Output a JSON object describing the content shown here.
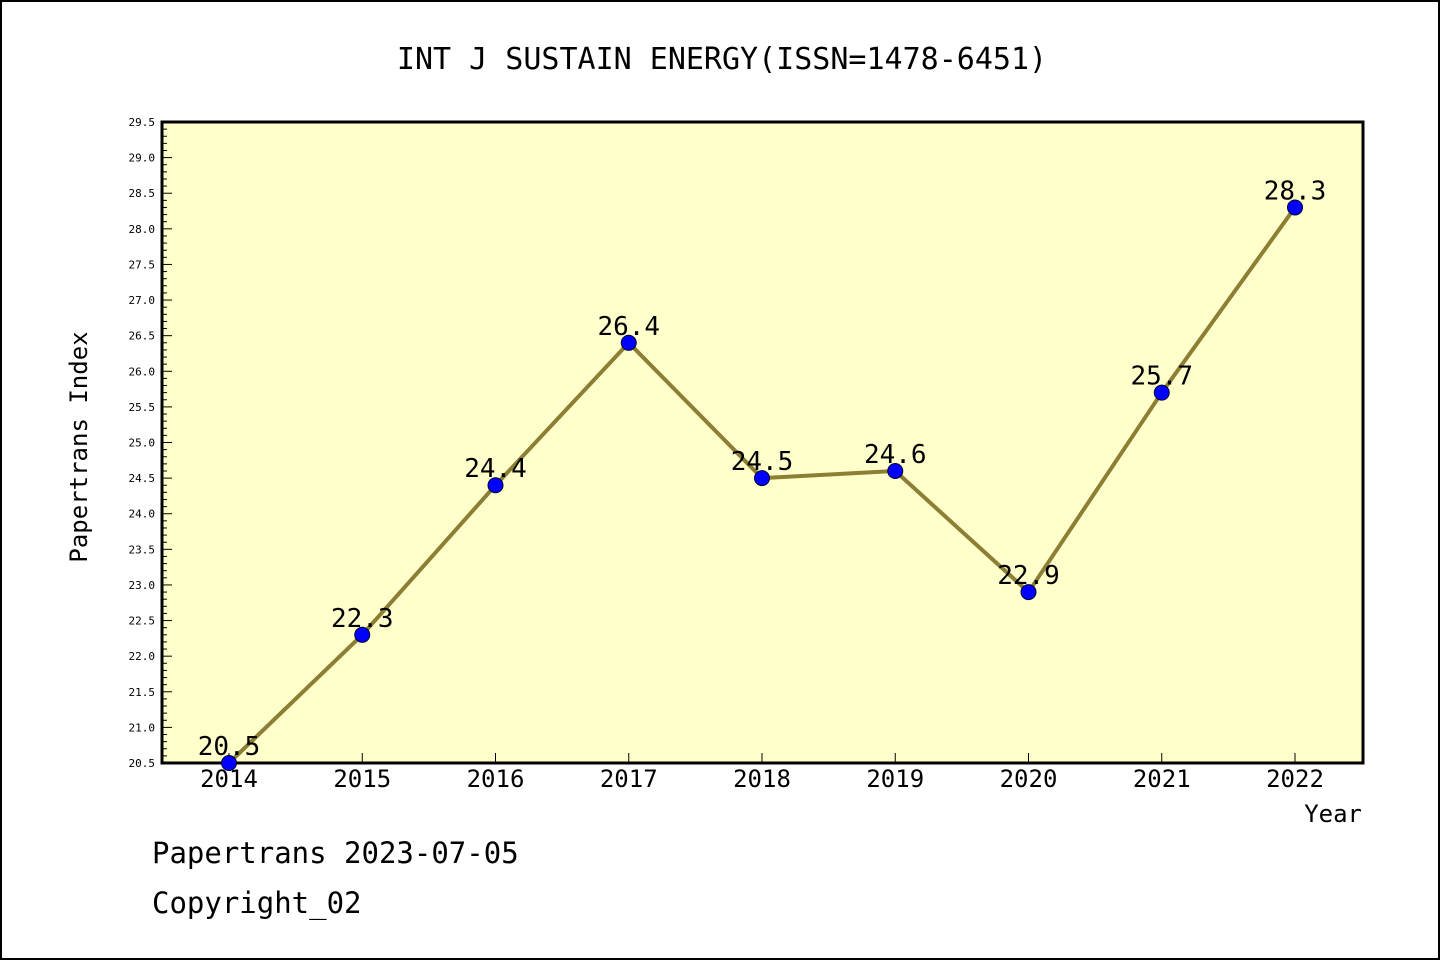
{
  "chart_data": {
    "type": "line",
    "title": "INT J SUSTAIN ENERGY(ISSN=1478-6451)",
    "xlabel": "Year",
    "ylabel": "Papertrans Index",
    "categories": [
      "2014",
      "2015",
      "2016",
      "2017",
      "2018",
      "2019",
      "2020",
      "2021",
      "2022"
    ],
    "series": [
      {
        "values": [
          20.5,
          22.3,
          24.4,
          26.4,
          24.5,
          24.6,
          22.9,
          25.7,
          28.3
        ],
        "data_labels": [
          "20.5",
          "22.3",
          "24.4",
          "26.4",
          "24.5",
          "24.6",
          "22.9",
          "25.7",
          "28.3"
        ]
      }
    ],
    "ylim": [
      20.5,
      29.5
    ],
    "yticks": [
      "20.5",
      "21.0",
      "21.5",
      "22.0",
      "22.5",
      "23.0",
      "23.5",
      "24.0",
      "24.5",
      "25.0",
      "25.5",
      "26.0",
      "26.5",
      "27.0",
      "27.5",
      "28.0",
      "28.5",
      "29.0",
      "29.5"
    ],
    "grid": false,
    "colors": {
      "plot_background": "#ffffcc",
      "line": "#8c7e32",
      "marker": "#0000ff"
    }
  },
  "footer": {
    "line1": "Papertrans 2023-07-05",
    "line2": "Copyright_02"
  }
}
